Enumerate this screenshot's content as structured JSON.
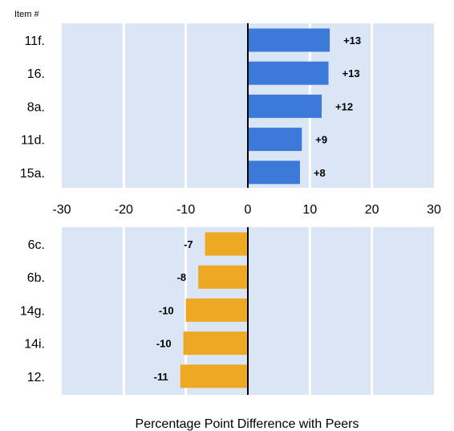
{
  "colors": {
    "panel_bg": "#dae5f5",
    "grid": "#ffffff",
    "positive": "#3c7ad9",
    "negative": "#efa823",
    "zero_line": "#000000"
  },
  "chart_data": {
    "type": "bar",
    "orientation": "horizontal",
    "category_header": "Item #",
    "xlabel": "Percentage Point Difference with Peers",
    "xlim": [
      -30,
      30
    ],
    "xticks": [
      "-30",
      "-20",
      "-10",
      "0",
      "10",
      "20",
      "30"
    ],
    "grid": true,
    "panels": [
      {
        "categories": [
          "11f.",
          "16.",
          "8a.",
          "11d.",
          "15a."
        ],
        "values": [
          13.2,
          13.0,
          11.9,
          8.7,
          8.4
        ],
        "labels": [
          "+13",
          "+13",
          "+12",
          "+9",
          "+8"
        ],
        "color": "positive"
      },
      {
        "categories": [
          "6c.",
          "6b.",
          "14g.",
          "14i.",
          "12."
        ],
        "values": [
          -6.9,
          -8.0,
          -10.0,
          -10.4,
          -10.9
        ],
        "labels": [
          "-7",
          "-8",
          "-10",
          "-10",
          "-11"
        ],
        "color": "negative"
      }
    ]
  }
}
